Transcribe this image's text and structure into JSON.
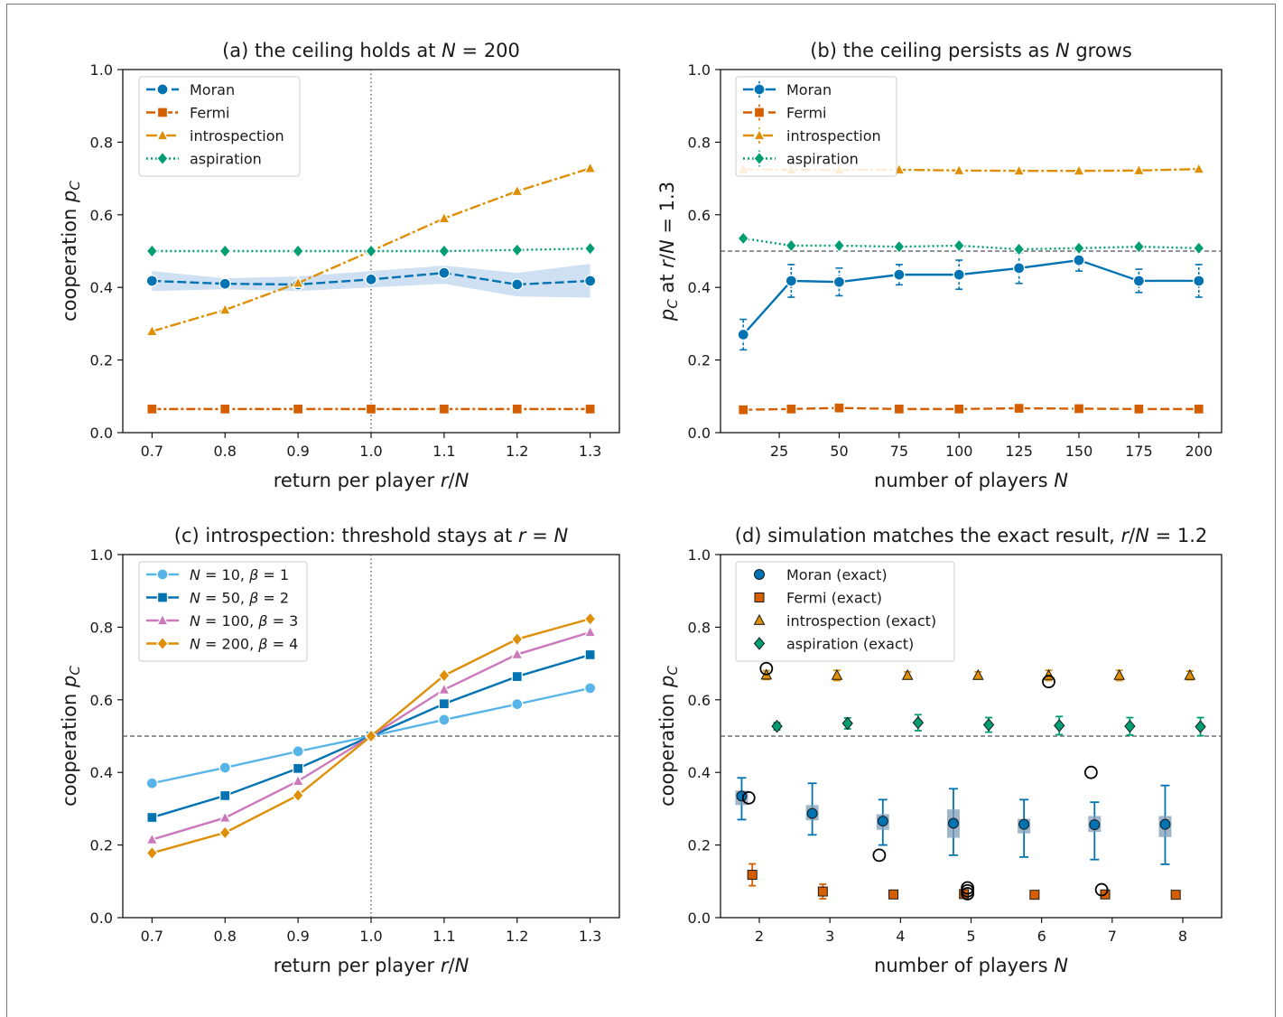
{
  "colors": {
    "Moran": "#0173b2",
    "Fermi": "#d55e00",
    "introspection": "#de8f05",
    "aspiration": "#029e73",
    "c1": "#56b4e9",
    "c2": "#0173b2",
    "c3": "#cc78bc",
    "c4": "#de8f05",
    "ref_line": "#555555",
    "band": "#c6dbef"
  },
  "chart_data": [
    {
      "type": "line",
      "title": "(a) the ceiling holds at N = 200",
      "xlabel": "return per player r/N",
      "ylabel": "cooperation p_C",
      "x": [
        0.7,
        0.8,
        0.9,
        1.0,
        1.1,
        1.2,
        1.3
      ],
      "xticks": [
        "0.7",
        "0.8",
        "0.9",
        "1.0",
        "1.1",
        "1.2",
        "1.3"
      ],
      "yticks": [
        "0.0",
        "0.2",
        "0.4",
        "0.6",
        "0.8",
        "1.0"
      ],
      "xlim": [
        0.66,
        1.34
      ],
      "ylim": [
        0,
        1
      ],
      "vline": 1.0,
      "legend": "top-left",
      "series": [
        {
          "name": "Moran",
          "marker": "circle",
          "dash": "10,4",
          "values": [
            0.418,
            0.41,
            0.408,
            0.422,
            0.44,
            0.408,
            0.418
          ],
          "band_low": [
            0.39,
            0.395,
            0.39,
            0.4,
            0.41,
            0.375,
            0.372
          ],
          "band_high": [
            0.445,
            0.425,
            0.43,
            0.445,
            0.46,
            0.44,
            0.465
          ]
        },
        {
          "name": "Fermi",
          "marker": "square",
          "dash": "10,3,3,3",
          "values": [
            0.065,
            0.065,
            0.065,
            0.065,
            0.065,
            0.065,
            0.065
          ]
        },
        {
          "name": "introspection",
          "marker": "triangle",
          "dash": "12,3,3,3",
          "values": [
            0.279,
            0.338,
            0.412,
            0.5,
            0.59,
            0.665,
            0.728
          ]
        },
        {
          "name": "aspiration",
          "marker": "diamond",
          "dash": "2,3",
          "values": [
            0.5,
            0.5,
            0.5,
            0.5,
            0.5,
            0.503,
            0.507
          ]
        }
      ]
    },
    {
      "type": "line",
      "title": "(b) the ceiling persists as N grows",
      "xlabel": "number of players N",
      "ylabel": "p_C at r/N = 1.3",
      "x": [
        10,
        30,
        50,
        75,
        100,
        125,
        150,
        175,
        200
      ],
      "xticks": [
        "25",
        "50",
        "75",
        "100",
        "125",
        "150",
        "175",
        "200"
      ],
      "xtick_values": [
        25,
        50,
        75,
        100,
        125,
        150,
        175,
        200
      ],
      "yticks": [
        "0.0",
        "0.2",
        "0.4",
        "0.6",
        "0.8",
        "1.0"
      ],
      "xlim": [
        0.5,
        209.5
      ],
      "ylim": [
        0,
        1
      ],
      "hline": 0.5,
      "legend": "top-left",
      "series": [
        {
          "name": "Moran",
          "marker": "circle",
          "dash": "",
          "values": [
            0.27,
            0.418,
            0.415,
            0.435,
            0.435,
            0.453,
            0.475,
            0.418,
            0.418
          ],
          "err": [
            0.042,
            0.045,
            0.038,
            0.028,
            0.04,
            0.042,
            0.03,
            0.032,
            0.045
          ]
        },
        {
          "name": "Fermi",
          "marker": "square",
          "dash": "10,4",
          "values": [
            0.063,
            0.065,
            0.068,
            0.065,
            0.065,
            0.067,
            0.066,
            0.065,
            0.065
          ]
        },
        {
          "name": "introspection",
          "marker": "triangle",
          "dash": "12,3,3,3",
          "values": [
            0.725,
            0.724,
            0.723,
            0.724,
            0.722,
            0.721,
            0.721,
            0.722,
            0.726
          ]
        },
        {
          "name": "aspiration",
          "marker": "diamond",
          "dash": "2,3",
          "values": [
            0.535,
            0.515,
            0.515,
            0.512,
            0.515,
            0.505,
            0.508,
            0.512,
            0.508
          ]
        }
      ]
    },
    {
      "type": "line",
      "title": "(c) introspection: threshold stays at r = N",
      "xlabel": "return per player r/N",
      "ylabel": "cooperation p_C",
      "x": [
        0.7,
        0.8,
        0.9,
        1.0,
        1.1,
        1.2,
        1.3
      ],
      "xticks": [
        "0.7",
        "0.8",
        "0.9",
        "1.0",
        "1.1",
        "1.2",
        "1.3"
      ],
      "yticks": [
        "0.0",
        "0.2",
        "0.4",
        "0.6",
        "0.8",
        "1.0"
      ],
      "xlim": [
        0.66,
        1.34
      ],
      "ylim": [
        0,
        1
      ],
      "vline": 1.0,
      "hline": 0.5,
      "legend": "top-left",
      "series": [
        {
          "name": "N = 10, β = 1",
          "marker": "circle",
          "dash": "",
          "values": [
            0.37,
            0.413,
            0.458,
            0.5,
            0.545,
            0.588,
            0.632
          ]
        },
        {
          "name": "N = 50, β = 2",
          "marker": "square",
          "dash": "",
          "values": [
            0.276,
            0.336,
            0.411,
            0.5,
            0.589,
            0.664,
            0.724
          ]
        },
        {
          "name": "N = 100, β = 3",
          "marker": "triangle",
          "dash": "",
          "values": [
            0.215,
            0.275,
            0.376,
            0.5,
            0.628,
            0.725,
            0.786
          ]
        },
        {
          "name": "N = 200, β = 4",
          "marker": "diamond",
          "dash": "",
          "values": [
            0.178,
            0.234,
            0.337,
            0.5,
            0.667,
            0.767,
            0.823
          ]
        }
      ]
    },
    {
      "type": "scatter",
      "title": "(d) simulation matches the exact result, r/N = 1.2",
      "xlabel": "number of players N",
      "ylabel": "cooperation p_C",
      "xticks": [
        "2",
        "3",
        "4",
        "5",
        "6",
        "7",
        "8"
      ],
      "xtick_values": [
        2,
        3,
        4,
        5,
        6,
        7,
        8
      ],
      "yticks": [
        "0.0",
        "0.2",
        "0.4",
        "0.6",
        "0.8",
        "1.0"
      ],
      "xlim": [
        1.45,
        8.55
      ],
      "ylim": [
        0,
        1
      ],
      "hline": 0.5,
      "legend": "top-left",
      "series": [
        {
          "name": "Moran (exact)",
          "marker": "circle",
          "x": [
            1.75,
            2.75,
            3.75,
            4.75,
            5.75,
            6.75,
            7.75
          ],
          "values": [
            0.335,
            0.287,
            0.266,
            0.26,
            0.257,
            0.256,
            0.257
          ],
          "err_low": [
            0.27,
            0.228,
            0.2,
            0.172,
            0.167,
            0.16,
            0.147
          ],
          "err_high": [
            0.385,
            0.37,
            0.325,
            0.355,
            0.325,
            0.318,
            0.364
          ],
          "box_low": [
            0.31,
            0.268,
            0.242,
            0.22,
            0.232,
            0.236,
            0.222
          ],
          "box_high": [
            0.35,
            0.31,
            0.285,
            0.298,
            0.272,
            0.28,
            0.28
          ]
        },
        {
          "name": "Fermi (exact)",
          "marker": "square",
          "x": [
            1.9,
            2.9,
            3.9,
            4.9,
            5.9,
            6.9,
            7.9
          ],
          "values": [
            0.118,
            0.072,
            0.064,
            0.065,
            0.063,
            0.064,
            0.063
          ],
          "err": [
            0.03,
            0.02,
            0.01,
            0.01,
            0.005,
            0.01,
            0.005
          ]
        },
        {
          "name": "introspection (exact)",
          "marker": "triangle",
          "x": [
            2.1,
            3.1,
            4.1,
            5.1,
            6.1,
            7.1,
            8.1
          ],
          "values": [
            0.668,
            0.667,
            0.667,
            0.667,
            0.667,
            0.667,
            0.667
          ],
          "err": [
            0.012,
            0.014,
            0.01,
            0.01,
            0.014,
            0.014,
            0.012
          ]
        },
        {
          "name": "aspiration (exact)",
          "marker": "diamond",
          "x": [
            2.25,
            3.25,
            4.25,
            5.25,
            6.25,
            7.25,
            8.25
          ],
          "values": [
            0.527,
            0.535,
            0.537,
            0.531,
            0.529,
            0.527,
            0.526
          ],
          "err": [
            0.01,
            0.015,
            0.022,
            0.02,
            0.025,
            0.024,
            0.025
          ]
        }
      ],
      "exact_markers": {
        "x": [
          1.85,
          2.1,
          3.7,
          4.95,
          4.95,
          4.95,
          6.1,
          6.7,
          6.85
        ],
        "values": [
          0.33,
          0.686,
          0.172,
          0.082,
          0.074,
          0.066,
          0.65,
          0.4,
          0.077
        ]
      }
    }
  ]
}
